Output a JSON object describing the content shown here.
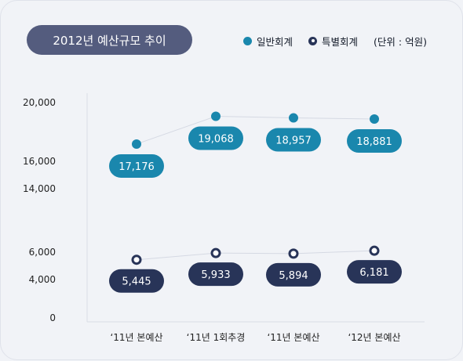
{
  "title": "2012년 예산규모 추이",
  "unit_note": "(단위 : 억원)",
  "colors": {
    "general_account": "#1a87ad",
    "special_account": "#283458",
    "title_pill": "#545c7e",
    "connector_line": "#d5d9e3"
  },
  "chart_data": {
    "type": "line",
    "title": "2012년 예산규모 추이",
    "ylabel": "",
    "xlabel": "",
    "unit": "억원",
    "categories": [
      "‘11년 본예산",
      "‘11년 1회추경",
      "‘11년 본예산",
      "‘12년 본예산"
    ],
    "series": [
      {
        "name": "일반회계",
        "values": [
          17176,
          19068,
          18957,
          18881
        ]
      },
      {
        "name": "특별회계",
        "values": [
          5445,
          5933,
          5894,
          6181
        ]
      }
    ],
    "y_ticks": [
      0,
      4000,
      6000,
      14000,
      16000,
      20000
    ],
    "y_tick_labels": [
      "0",
      "4,000",
      "6,000",
      "14,000",
      "16,000",
      "20,000"
    ],
    "ylim": [
      0,
      20000
    ],
    "axis_break": true,
    "grid": false,
    "legend_position": "top-right"
  }
}
